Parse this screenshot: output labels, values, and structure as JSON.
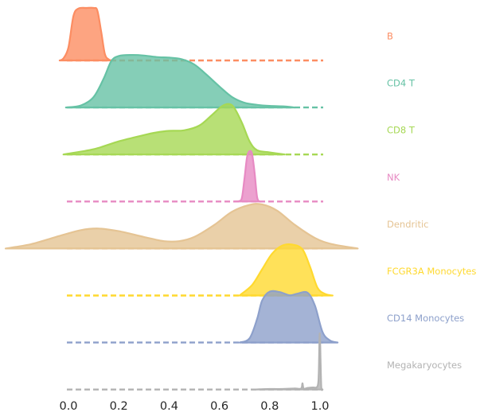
{
  "chart_data": {
    "type": "ridgeline",
    "xlim": [
      0.0,
      1.0
    ],
    "x_ticks": [
      "0.0",
      "0.2",
      "0.4",
      "0.6",
      "0.8",
      "1.0"
    ],
    "grid": false,
    "legend": "none",
    "series": [
      {
        "name": "B",
        "color": "#fc8d62",
        "density": [
          [
            -0.035,
            0
          ],
          [
            -0.02,
            0.04
          ],
          [
            0.0,
            0.25
          ],
          [
            0.02,
            0.85
          ],
          [
            0.04,
            0.99
          ],
          [
            0.07,
            1.0
          ],
          [
            0.1,
            1.0
          ],
          [
            0.115,
            0.95
          ],
          [
            0.13,
            0.55
          ],
          [
            0.145,
            0.12
          ],
          [
            0.16,
            0.02
          ],
          [
            0.17,
            0
          ]
        ]
      },
      {
        "name": "CD4 T",
        "color": "#66c2a5",
        "density": [
          [
            -0.01,
            0
          ],
          [
            0.05,
            0.04
          ],
          [
            0.1,
            0.2
          ],
          [
            0.14,
            0.55
          ],
          [
            0.17,
            0.88
          ],
          [
            0.2,
            0.98
          ],
          [
            0.25,
            1.0
          ],
          [
            0.3,
            0.99
          ],
          [
            0.35,
            0.96
          ],
          [
            0.4,
            0.95
          ],
          [
            0.45,
            0.92
          ],
          [
            0.5,
            0.82
          ],
          [
            0.55,
            0.62
          ],
          [
            0.6,
            0.4
          ],
          [
            0.65,
            0.2
          ],
          [
            0.7,
            0.09
          ],
          [
            0.75,
            0.05
          ],
          [
            0.8,
            0.03
          ],
          [
            0.86,
            0.02
          ],
          [
            0.9,
            0
          ]
        ]
      },
      {
        "name": "CD8 T",
        "color": "#a6d854",
        "density": [
          [
            -0.02,
            0
          ],
          [
            0.1,
            0.1
          ],
          [
            0.2,
            0.25
          ],
          [
            0.3,
            0.37
          ],
          [
            0.35,
            0.42
          ],
          [
            0.4,
            0.45
          ],
          [
            0.46,
            0.46
          ],
          [
            0.52,
            0.55
          ],
          [
            0.57,
            0.75
          ],
          [
            0.61,
            0.92
          ],
          [
            0.64,
            0.96
          ],
          [
            0.66,
            0.88
          ],
          [
            0.69,
            0.6
          ],
          [
            0.72,
            0.25
          ],
          [
            0.75,
            0.08
          ],
          [
            0.8,
            0.04
          ],
          [
            0.86,
            0
          ]
        ]
      },
      {
        "name": "NK",
        "color": "#e78ac3",
        "density": [
          [
            0.66,
            0
          ],
          [
            0.68,
            0.01
          ],
          [
            0.69,
            0.08
          ],
          [
            0.7,
            0.45
          ],
          [
            0.71,
            0.85
          ],
          [
            0.72,
            0.96
          ],
          [
            0.73,
            0.9
          ],
          [
            0.74,
            0.55
          ],
          [
            0.75,
            0.08
          ],
          [
            0.76,
            0
          ]
        ]
      },
      {
        "name": "Dendritic",
        "color": "#e5c494",
        "density": [
          [
            -0.25,
            0
          ],
          [
            -0.15,
            0.08
          ],
          [
            -0.05,
            0.22
          ],
          [
            0.05,
            0.35
          ],
          [
            0.12,
            0.38
          ],
          [
            0.2,
            0.33
          ],
          [
            0.3,
            0.22
          ],
          [
            0.38,
            0.14
          ],
          [
            0.44,
            0.14
          ],
          [
            0.5,
            0.22
          ],
          [
            0.58,
            0.45
          ],
          [
            0.65,
            0.7
          ],
          [
            0.72,
            0.83
          ],
          [
            0.77,
            0.84
          ],
          [
            0.83,
            0.72
          ],
          [
            0.9,
            0.45
          ],
          [
            0.98,
            0.2
          ],
          [
            1.05,
            0.08
          ],
          [
            1.15,
            0
          ]
        ]
      },
      {
        "name": "FCGR3A Monocytes",
        "color": "#ffd92f",
        "density": [
          [
            0.68,
            0
          ],
          [
            0.73,
            0.2
          ],
          [
            0.77,
            0.5
          ],
          [
            0.81,
            0.8
          ],
          [
            0.85,
            0.95
          ],
          [
            0.89,
            0.97
          ],
          [
            0.93,
            0.88
          ],
          [
            0.96,
            0.55
          ],
          [
            0.99,
            0.15
          ],
          [
            1.02,
            0.03
          ],
          [
            1.05,
            0
          ]
        ]
      },
      {
        "name": "CD14 Monocytes",
        "color": "#8da0cb",
        "density": [
          [
            0.68,
            0
          ],
          [
            0.72,
            0.08
          ],
          [
            0.75,
            0.45
          ],
          [
            0.77,
            0.8
          ],
          [
            0.8,
            0.97
          ],
          [
            0.84,
            0.96
          ],
          [
            0.88,
            0.9
          ],
          [
            0.91,
            0.93
          ],
          [
            0.95,
            0.95
          ],
          [
            0.98,
            0.7
          ],
          [
            1.01,
            0.2
          ],
          [
            1.04,
            0.04
          ],
          [
            1.07,
            0
          ]
        ]
      },
      {
        "name": "Megakaryocytes",
        "color": "#b3b3b3",
        "density": [
          [
            0.73,
            0
          ],
          [
            0.76,
            0.005
          ],
          [
            0.8,
            0.01
          ],
          [
            0.85,
            0.01
          ],
          [
            0.9,
            0.02
          ],
          [
            0.925,
            0.02
          ],
          [
            0.93,
            0.12
          ],
          [
            0.935,
            0.02
          ],
          [
            0.95,
            0.03
          ],
          [
            0.97,
            0.04
          ],
          [
            0.99,
            0.06
          ],
          [
            0.995,
            0.3
          ],
          [
            0.998,
            1.0
          ],
          [
            1.0,
            1.0
          ],
          [
            1.002,
            0.6
          ],
          [
            1.005,
            0.05
          ],
          [
            1.01,
            0
          ]
        ]
      }
    ]
  }
}
